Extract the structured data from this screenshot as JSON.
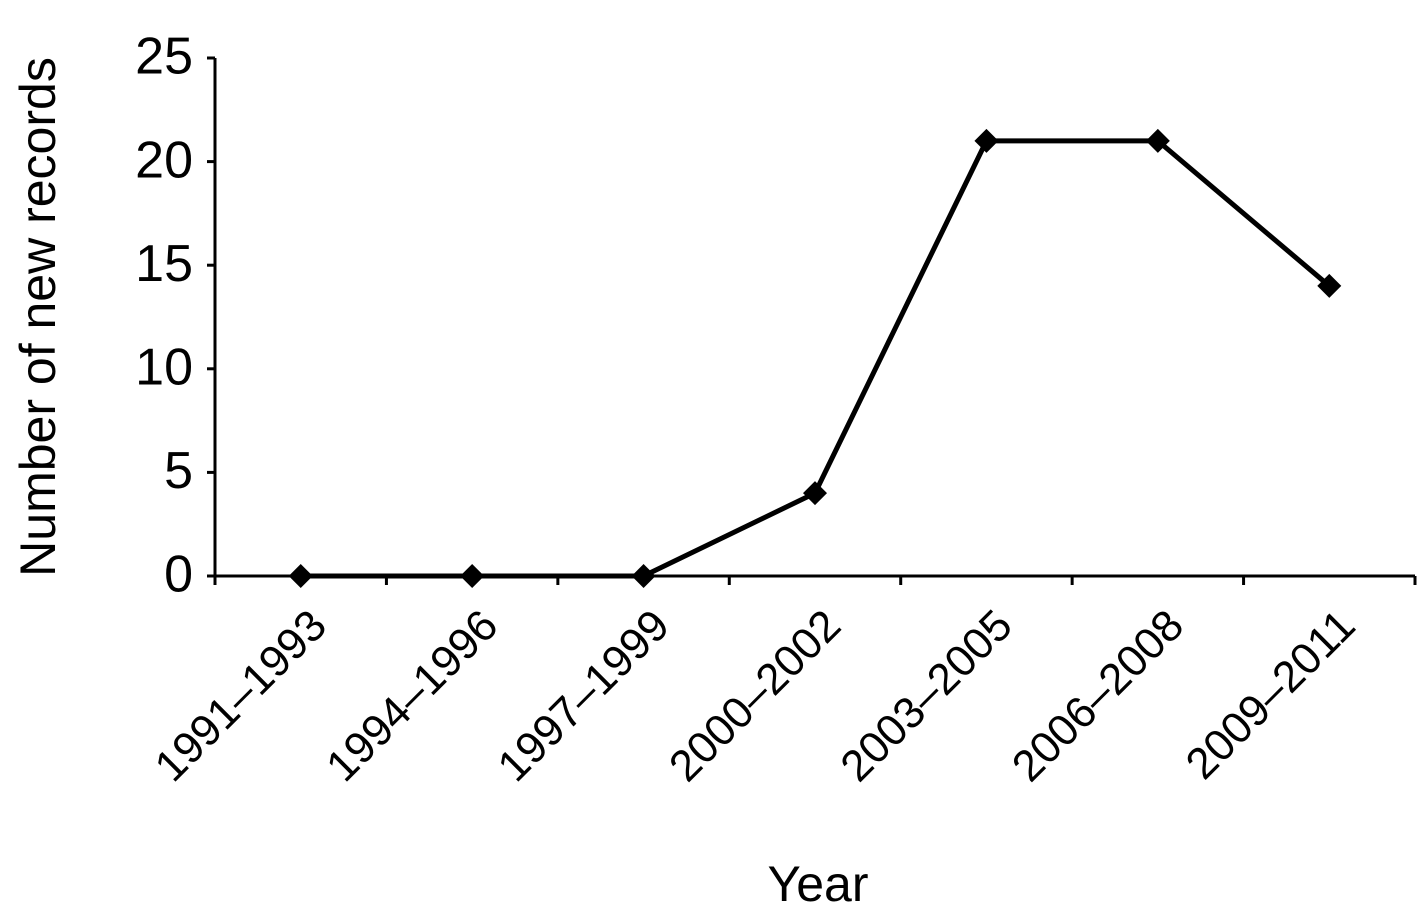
{
  "chart_data": {
    "type": "line",
    "x_label": "Year",
    "y_label": "Number of new records",
    "categories": [
      "1991–1993",
      "1994–1996",
      "1997–1999",
      "2000–2002",
      "2003–2005",
      "2006–2008",
      "2009–2011"
    ],
    "series": [
      {
        "name": "New records",
        "color": "#000000",
        "values": [
          0,
          0,
          0,
          4,
          21,
          21,
          14
        ]
      }
    ],
    "ylim": [
      0,
      25
    ],
    "yticks": [
      0,
      5,
      10,
      15,
      20,
      25
    ],
    "grid": false
  }
}
